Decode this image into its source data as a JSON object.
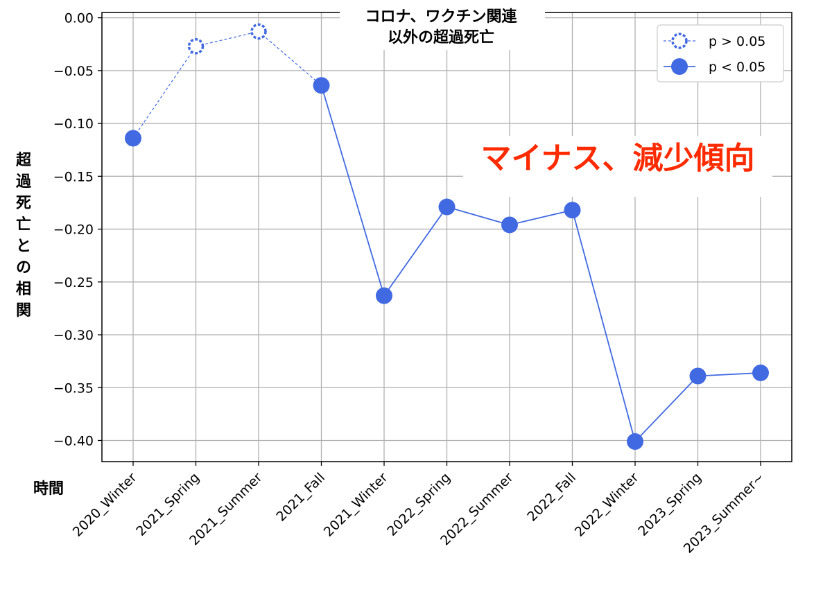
{
  "chart_data": {
    "type": "line",
    "title_lines": [
      "コロナ、ワクチン関連",
      "以外の超過死亡"
    ],
    "ylabel": "超過死亡との相関",
    "xlabel": "時間",
    "categories": [
      "2020_Winter",
      "2021_Spring",
      "2021_Summer",
      "2021_Fall",
      "2021_Winter",
      "2022_Spring",
      "2022_Summer",
      "2022_Fall",
      "2022_Winter",
      "2023_Spring",
      "2023_Summer~"
    ],
    "values": [
      -0.114,
      -0.027,
      -0.013,
      -0.064,
      -0.263,
      -0.179,
      -0.196,
      -0.182,
      -0.401,
      -0.339,
      -0.336
    ],
    "significant": [
      true,
      false,
      false,
      true,
      true,
      true,
      true,
      true,
      true,
      true,
      true
    ],
    "ylim": [
      -0.42,
      0.005
    ],
    "yticks": [
      0.0,
      -0.05,
      -0.1,
      -0.15,
      -0.2,
      -0.25,
      -0.3,
      -0.35,
      -0.4
    ],
    "ytick_labels": [
      "0.00",
      "−0.05",
      "−0.10",
      "−0.15",
      "−0.20",
      "−0.25",
      "−0.30",
      "−0.35",
      "−0.40"
    ],
    "legend": {
      "placement": "top-right",
      "entries": [
        {
          "label": "p > 0.05",
          "style": "dashed-hollow"
        },
        {
          "label": "p < 0.05",
          "style": "solid-filled"
        }
      ]
    },
    "annotation": "マイナス、減少傾向",
    "grid": true,
    "colors": {
      "line": "#4169e1",
      "annotation": "#ff2a00",
      "grid": "#b0b0b0"
    }
  }
}
